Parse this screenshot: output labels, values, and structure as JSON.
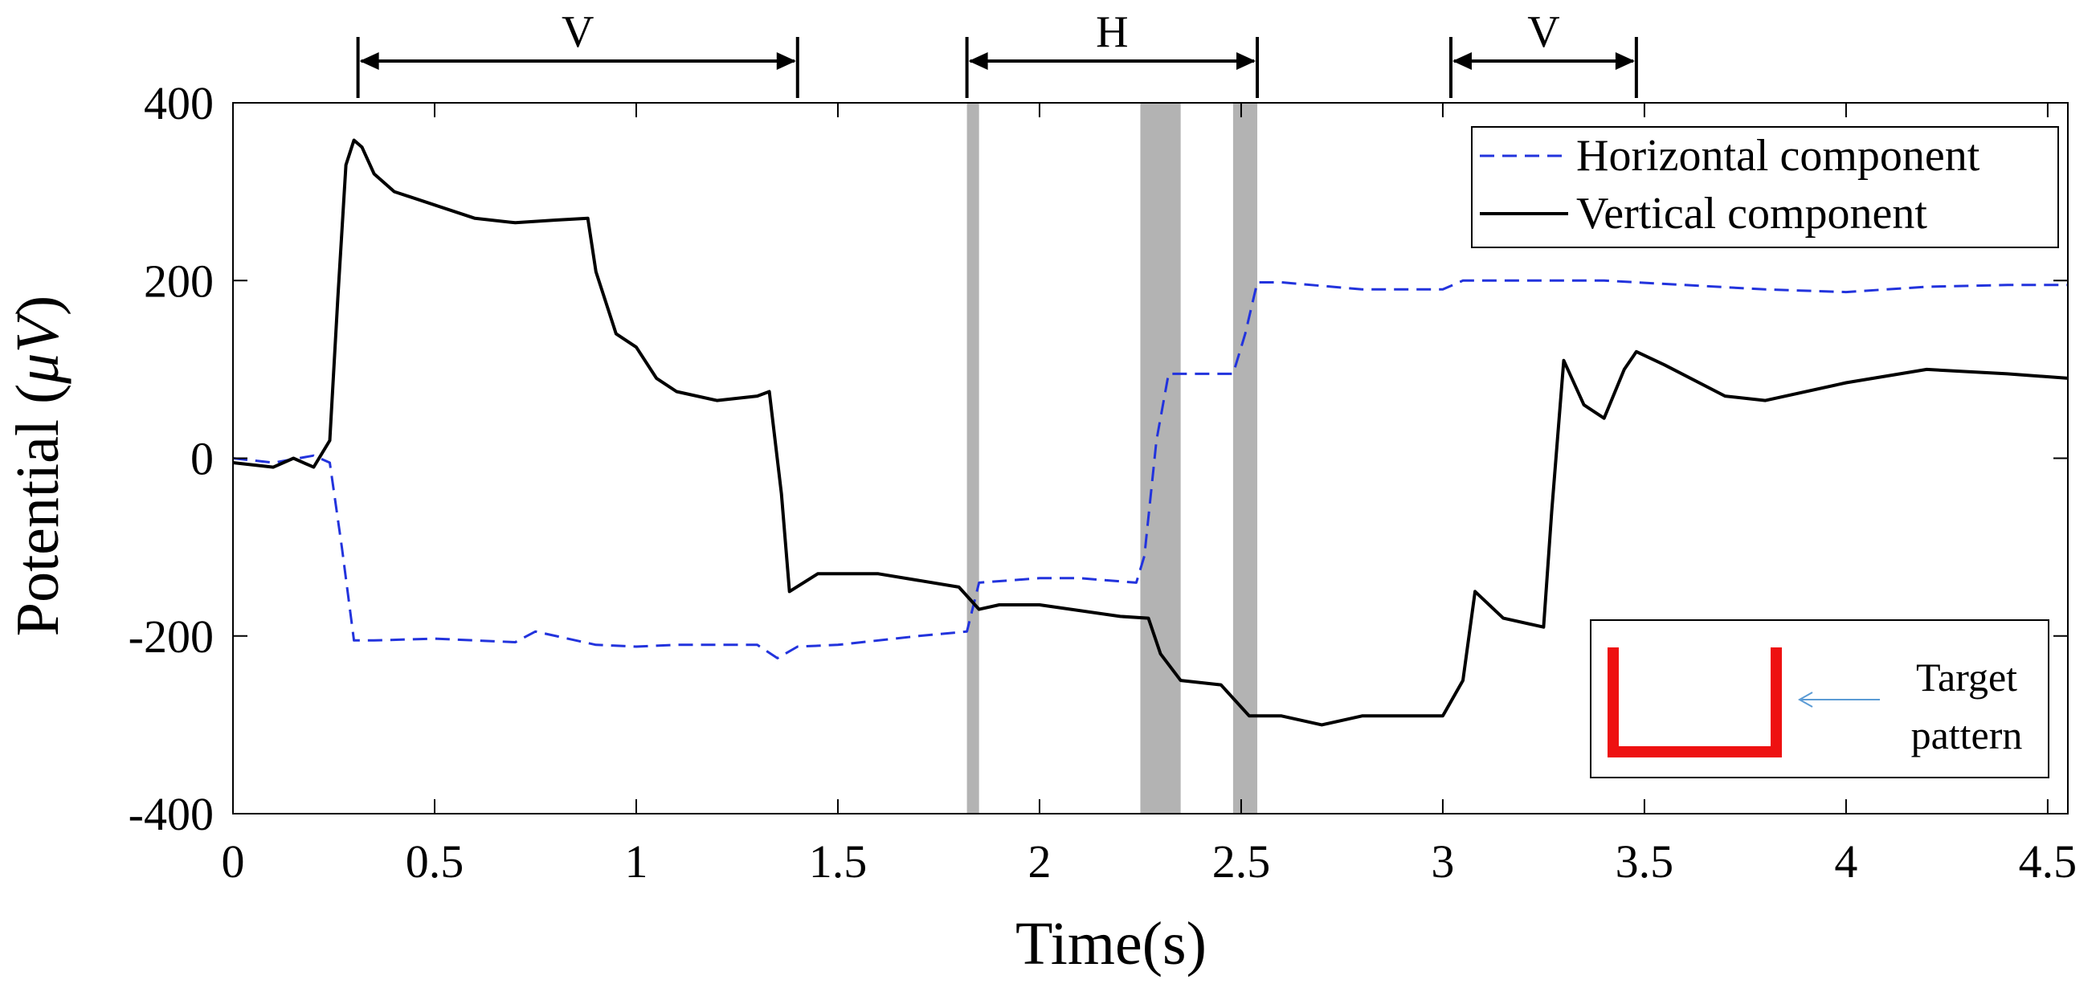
{
  "chart_data": {
    "type": "line",
    "xlabel": "Time(s)",
    "ylabel_text": "Potential (",
    "ylabel_unit": "μV",
    "ylabel_close": ")",
    "xlim": [
      0,
      4.55
    ],
    "ylim": [
      -400,
      400
    ],
    "x_ticks": [
      0,
      0.5,
      1,
      1.5,
      2,
      2.5,
      3,
      3.5,
      4,
      4.5
    ],
    "x_tick_labels": [
      "0",
      "0.5",
      "1",
      "1.5",
      "2",
      "2.5",
      "3",
      "3.5",
      "4",
      "4.5"
    ],
    "y_ticks": [
      -400,
      -200,
      0,
      200,
      400
    ],
    "y_tick_labels": [
      "-400",
      "-200",
      "0",
      "200",
      "400"
    ],
    "grid": false,
    "legend_placement": "top-right",
    "colors": {
      "horizontal": "#2233dd",
      "vertical": "#000000",
      "shade": "#b3b3b3",
      "target": "#ee1111",
      "arrow": "#5b9bd5"
    },
    "series": [
      {
        "name": "Horizontal component",
        "style": "dashed",
        "x": [
          0,
          0.1,
          0.2,
          0.24,
          0.27,
          0.3,
          0.35,
          0.5,
          0.7,
          0.75,
          0.9,
          1.0,
          1.1,
          1.3,
          1.35,
          1.4,
          1.5,
          1.7,
          1.82,
          1.85,
          2.0,
          2.1,
          2.24,
          2.26,
          2.29,
          2.32,
          2.38,
          2.48,
          2.51,
          2.54,
          2.6,
          2.8,
          3.0,
          3.05,
          3.2,
          3.4,
          3.6,
          3.8,
          4.0,
          4.2,
          4.4,
          4.55
        ],
        "values": [
          0,
          -5,
          3,
          -5,
          -100,
          -205,
          -205,
          -203,
          -207,
          -195,
          -210,
          -212,
          -210,
          -210,
          -225,
          -212,
          -210,
          -200,
          -195,
          -140,
          -135,
          -135,
          -140,
          -110,
          20,
          95,
          95,
          95,
          140,
          198,
          198,
          190,
          190,
          200,
          200,
          200,
          195,
          190,
          187,
          193,
          195,
          195
        ]
      },
      {
        "name": "Vertical component",
        "style": "solid",
        "x": [
          0,
          0.1,
          0.15,
          0.2,
          0.24,
          0.26,
          0.28,
          0.3,
          0.32,
          0.35,
          0.4,
          0.5,
          0.6,
          0.7,
          0.8,
          0.88,
          0.9,
          0.95,
          1.0,
          1.05,
          1.1,
          1.2,
          1.3,
          1.33,
          1.36,
          1.38,
          1.45,
          1.6,
          1.8,
          1.85,
          1.9,
          2.0,
          2.2,
          2.27,
          2.3,
          2.35,
          2.45,
          2.52,
          2.6,
          2.7,
          2.8,
          3.0,
          3.05,
          3.08,
          3.15,
          3.25,
          3.27,
          3.3,
          3.35,
          3.4,
          3.45,
          3.48,
          3.55,
          3.7,
          3.8,
          4.0,
          4.2,
          4.4,
          4.55
        ],
        "values": [
          -5,
          -10,
          0,
          -10,
          20,
          180,
          330,
          358,
          350,
          320,
          300,
          285,
          270,
          265,
          268,
          270,
          210,
          140,
          125,
          90,
          75,
          65,
          70,
          75,
          -40,
          -150,
          -130,
          -130,
          -145,
          -170,
          -165,
          -165,
          -178,
          -180,
          -220,
          -250,
          -255,
          -290,
          -290,
          -300,
          -290,
          -290,
          -250,
          -150,
          -180,
          -190,
          -60,
          110,
          60,
          45,
          100,
          120,
          105,
          70,
          65,
          85,
          100,
          95,
          90
        ]
      }
    ],
    "shaded_regions": [
      [
        1.82,
        1.85
      ],
      [
        2.25,
        2.35
      ],
      [
        2.48,
        2.54
      ]
    ],
    "interval_annotations": [
      {
        "label": "V",
        "start": 0.31,
        "end": 1.4
      },
      {
        "label": "H",
        "start": 1.82,
        "end": 2.54
      },
      {
        "label": "V",
        "start": 3.02,
        "end": 3.48
      }
    ],
    "inset": {
      "label_line1": "Target",
      "label_line2": "pattern"
    }
  }
}
